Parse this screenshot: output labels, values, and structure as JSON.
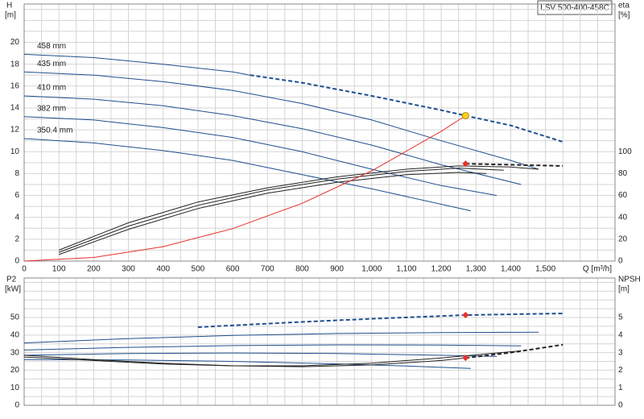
{
  "title": "LSV 500-400-458C",
  "chart_data": [
    {
      "type": "line",
      "ylabel": "H",
      "yunit": "[m]",
      "y2label": "eta",
      "y2unit": "[%]",
      "xlabel": "Q [m³/h]",
      "xlim": [
        0,
        1700
      ],
      "xticks": [
        0,
        100,
        200,
        300,
        400,
        500,
        600,
        700,
        800,
        900,
        {
          "value": 1000,
          "label": "1,000"
        },
        {
          "value": 1100,
          "label": "1,100"
        },
        {
          "value": 1200,
          "label": "1,200"
        },
        {
          "value": 1300,
          "label": "1,300"
        },
        {
          "value": 1400,
          "label": "1,400"
        },
        {
          "value": 1500,
          "label": "1,500"
        }
      ],
      "ylim": [
        0,
        23.5
      ],
      "yticks": [
        0,
        2,
        4,
        6,
        8,
        10,
        12,
        14,
        16,
        18,
        20
      ],
      "y2lim": [
        0,
        235
      ],
      "y2ticks": [
        0,
        20,
        40,
        60,
        80,
        100
      ],
      "grid": true,
      "series": [
        {
          "name": "458 mm",
          "color": "#1f4f8f",
          "x": [
            0,
            200,
            400,
            600,
            650
          ],
          "values": [
            18.9,
            18.6,
            18.0,
            17.3,
            17.0
          ]
        },
        {
          "color": "#1f4f8f",
          "dash": true,
          "x": [
            650,
            800,
            1000,
            1200,
            1270,
            1400,
            1550
          ],
          "values": [
            17.0,
            16.3,
            15.1,
            13.8,
            13.3,
            12.4,
            10.9
          ]
        },
        {
          "name": "435 mm",
          "color": "#1f4f8f",
          "x": [
            0,
            200,
            400,
            600,
            800,
            1000,
            1200,
            1400,
            1480
          ],
          "values": [
            17.3,
            17.0,
            16.4,
            15.6,
            14.4,
            12.9,
            11.0,
            9.2,
            8.4
          ]
        },
        {
          "name": "410 mm",
          "color": "#1f4f8f",
          "x": [
            0,
            200,
            400,
            600,
            800,
            1000,
            1200,
            1430
          ],
          "values": [
            15.1,
            14.8,
            14.2,
            13.3,
            12.1,
            10.6,
            8.8,
            7.0
          ]
        },
        {
          "name": "382 mm",
          "color": "#1f4f8f",
          "x": [
            0,
            200,
            400,
            600,
            800,
            1000,
            1200,
            1360
          ],
          "values": [
            13.2,
            12.9,
            12.2,
            11.3,
            10.0,
            8.4,
            6.9,
            6.0
          ]
        },
        {
          "name": "350.4 mm",
          "color": "#1f4f8f",
          "x": [
            0,
            200,
            400,
            600,
            800,
            1000,
            1100,
            1285
          ],
          "values": [
            11.2,
            10.8,
            10.1,
            9.2,
            7.9,
            6.6,
            5.9,
            4.6
          ]
        },
        {
          "color": "#222222",
          "axis": "y2",
          "x": [
            100,
            300,
            500,
            700,
            900,
            1100,
            1250,
            1400,
            1480
          ],
          "values": [
            10,
            35,
            54,
            67,
            77,
            84,
            87,
            86,
            84
          ]
        },
        {
          "color": "#222222",
          "axis": "y2",
          "x": [
            100,
            300,
            500,
            700,
            900,
            1100,
            1250,
            1380
          ],
          "values": [
            8,
            32,
            51,
            65,
            75,
            82,
            85,
            83
          ]
        },
        {
          "color": "#222222",
          "axis": "y2",
          "x": [
            100,
            300,
            500,
            700,
            900,
            1100,
            1250,
            1330
          ],
          "values": [
            6,
            29,
            48,
            62,
            72,
            79,
            81,
            80
          ]
        },
        {
          "color": "#222222",
          "axis": "y2",
          "dash": true,
          "x": [
            1270,
            1400,
            1550
          ],
          "values": [
            89,
            88,
            87
          ]
        },
        {
          "color": "#e8302a",
          "x": [
            0,
            200,
            400,
            600,
            800,
            1000,
            1200,
            1270
          ],
          "values": [
            0,
            0.33,
            1.32,
            2.97,
            5.28,
            8.25,
            11.87,
            13.3
          ]
        }
      ],
      "markers": [
        {
          "shape": "circle",
          "color": "#ffd21f",
          "x": 1270,
          "value": 13.3
        },
        {
          "shape": "diamond",
          "color": "#e8302a",
          "axis": "y2",
          "x": 1270,
          "value": 89
        }
      ]
    },
    {
      "type": "line",
      "ylabel": "P2",
      "yunit": "[kW]",
      "y2label": "NPSH",
      "y2unit": "[m]",
      "xlim": [
        0,
        1700
      ],
      "ylim": [
        0,
        72.5
      ],
      "yticks": [
        0,
        10,
        20,
        30,
        40,
        50
      ],
      "y2lim": [
        0,
        7.25
      ],
      "y2ticks": [
        0,
        1,
        2,
        3,
        4,
        5
      ],
      "grid": true,
      "series": [
        {
          "color": "#1f4f8f",
          "dash": true,
          "x": [
            500,
            800,
            1000,
            1270,
            1550
          ],
          "values": [
            44.5,
            47.5,
            49.3,
            51.4,
            52.3
          ]
        },
        {
          "color": "#1f4f8f",
          "x": [
            0,
            300,
            600,
            900,
            1200,
            1480
          ],
          "values": [
            35.5,
            38.0,
            39.8,
            40.9,
            41.4,
            41.6
          ]
        },
        {
          "color": "#1f4f8f",
          "x": [
            0,
            300,
            600,
            900,
            1200,
            1430
          ],
          "values": [
            31.5,
            33.0,
            34.0,
            34.4,
            34.3,
            33.8
          ]
        },
        {
          "color": "#1f4f8f",
          "x": [
            0,
            300,
            600,
            900,
            1200,
            1360
          ],
          "values": [
            28.5,
            29.5,
            29.8,
            29.5,
            28.5,
            27.8
          ]
        },
        {
          "color": "#1f4f8f",
          "x": [
            0,
            300,
            600,
            900,
            1100,
            1285
          ],
          "values": [
            26.0,
            25.8,
            25.0,
            23.6,
            22.4,
            21.0
          ]
        },
        {
          "color": "#222222",
          "axis": "y2",
          "x": [
            0,
            200,
            400,
            600,
            800,
            1000,
            1200,
            1270
          ],
          "values": [
            2.85,
            2.6,
            2.4,
            2.25,
            2.2,
            2.3,
            2.55,
            2.7
          ]
        },
        {
          "color": "#222222",
          "axis": "y2",
          "dash": true,
          "x": [
            1270,
            1400,
            1550
          ],
          "values": [
            2.7,
            3.0,
            3.45
          ]
        },
        {
          "color": "#222222",
          "axis": "y2",
          "x": [
            0,
            200,
            400,
            600,
            800,
            1000,
            1200,
            1430
          ],
          "values": [
            2.75,
            2.55,
            2.35,
            2.25,
            2.25,
            2.4,
            2.7,
            3.1
          ]
        }
      ],
      "markers": [
        {
          "shape": "diamond",
          "color": "#e8302a",
          "x": 1270,
          "value": 51.4
        },
        {
          "shape": "diamond",
          "color": "#e8302a",
          "axis": "y2",
          "x": 1270,
          "value": 2.7
        }
      ]
    }
  ]
}
